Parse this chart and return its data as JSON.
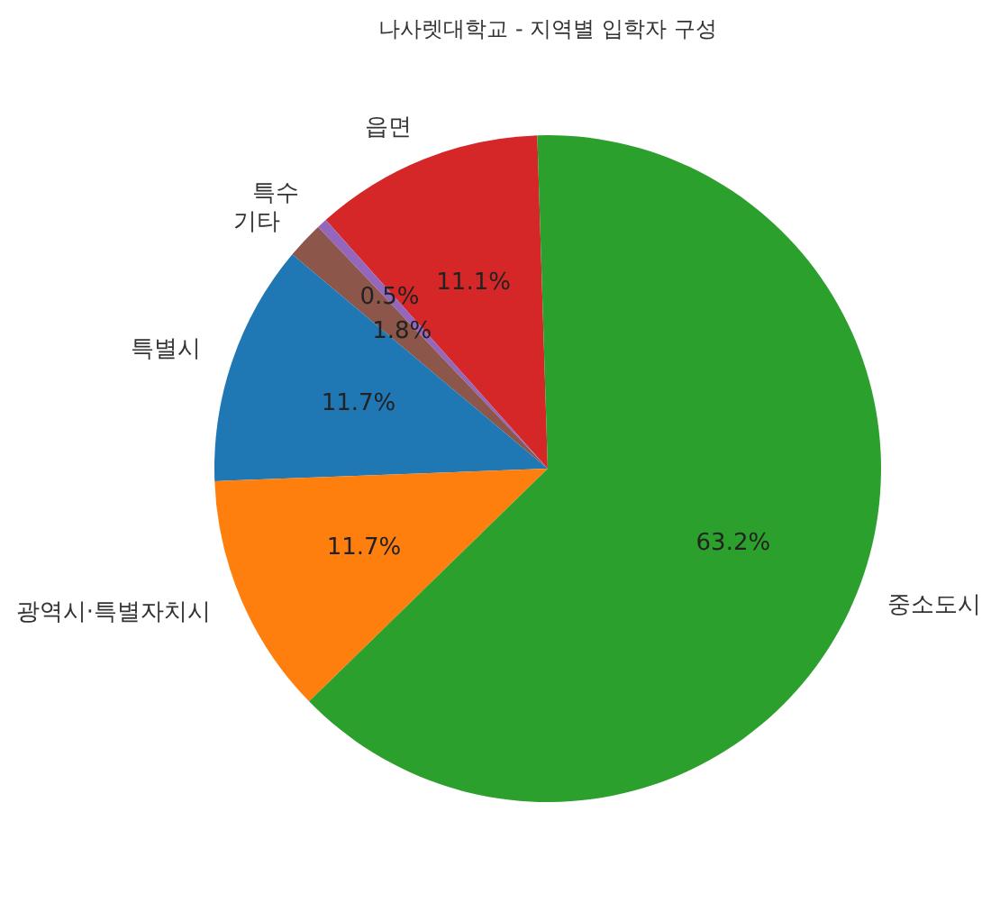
{
  "chart_data": {
    "type": "pie",
    "title": "나사렛대학교 - 지역별 입학자 구성",
    "categories": [
      "읍면",
      "특수",
      "기타",
      "특별시",
      "광역시·특별자치시",
      "중소도시"
    ],
    "values": [
      11.1,
      0.5,
      1.8,
      11.7,
      11.7,
      63.2
    ],
    "colors": [
      "#d62728",
      "#9467bd",
      "#8c564b",
      "#1f77b4",
      "#ff7f0e",
      "#2ca02c"
    ],
    "value_labels": [
      "11.1%",
      "0.5%",
      "1.8%",
      "11.7%",
      "11.7%",
      "63.2%"
    ]
  }
}
